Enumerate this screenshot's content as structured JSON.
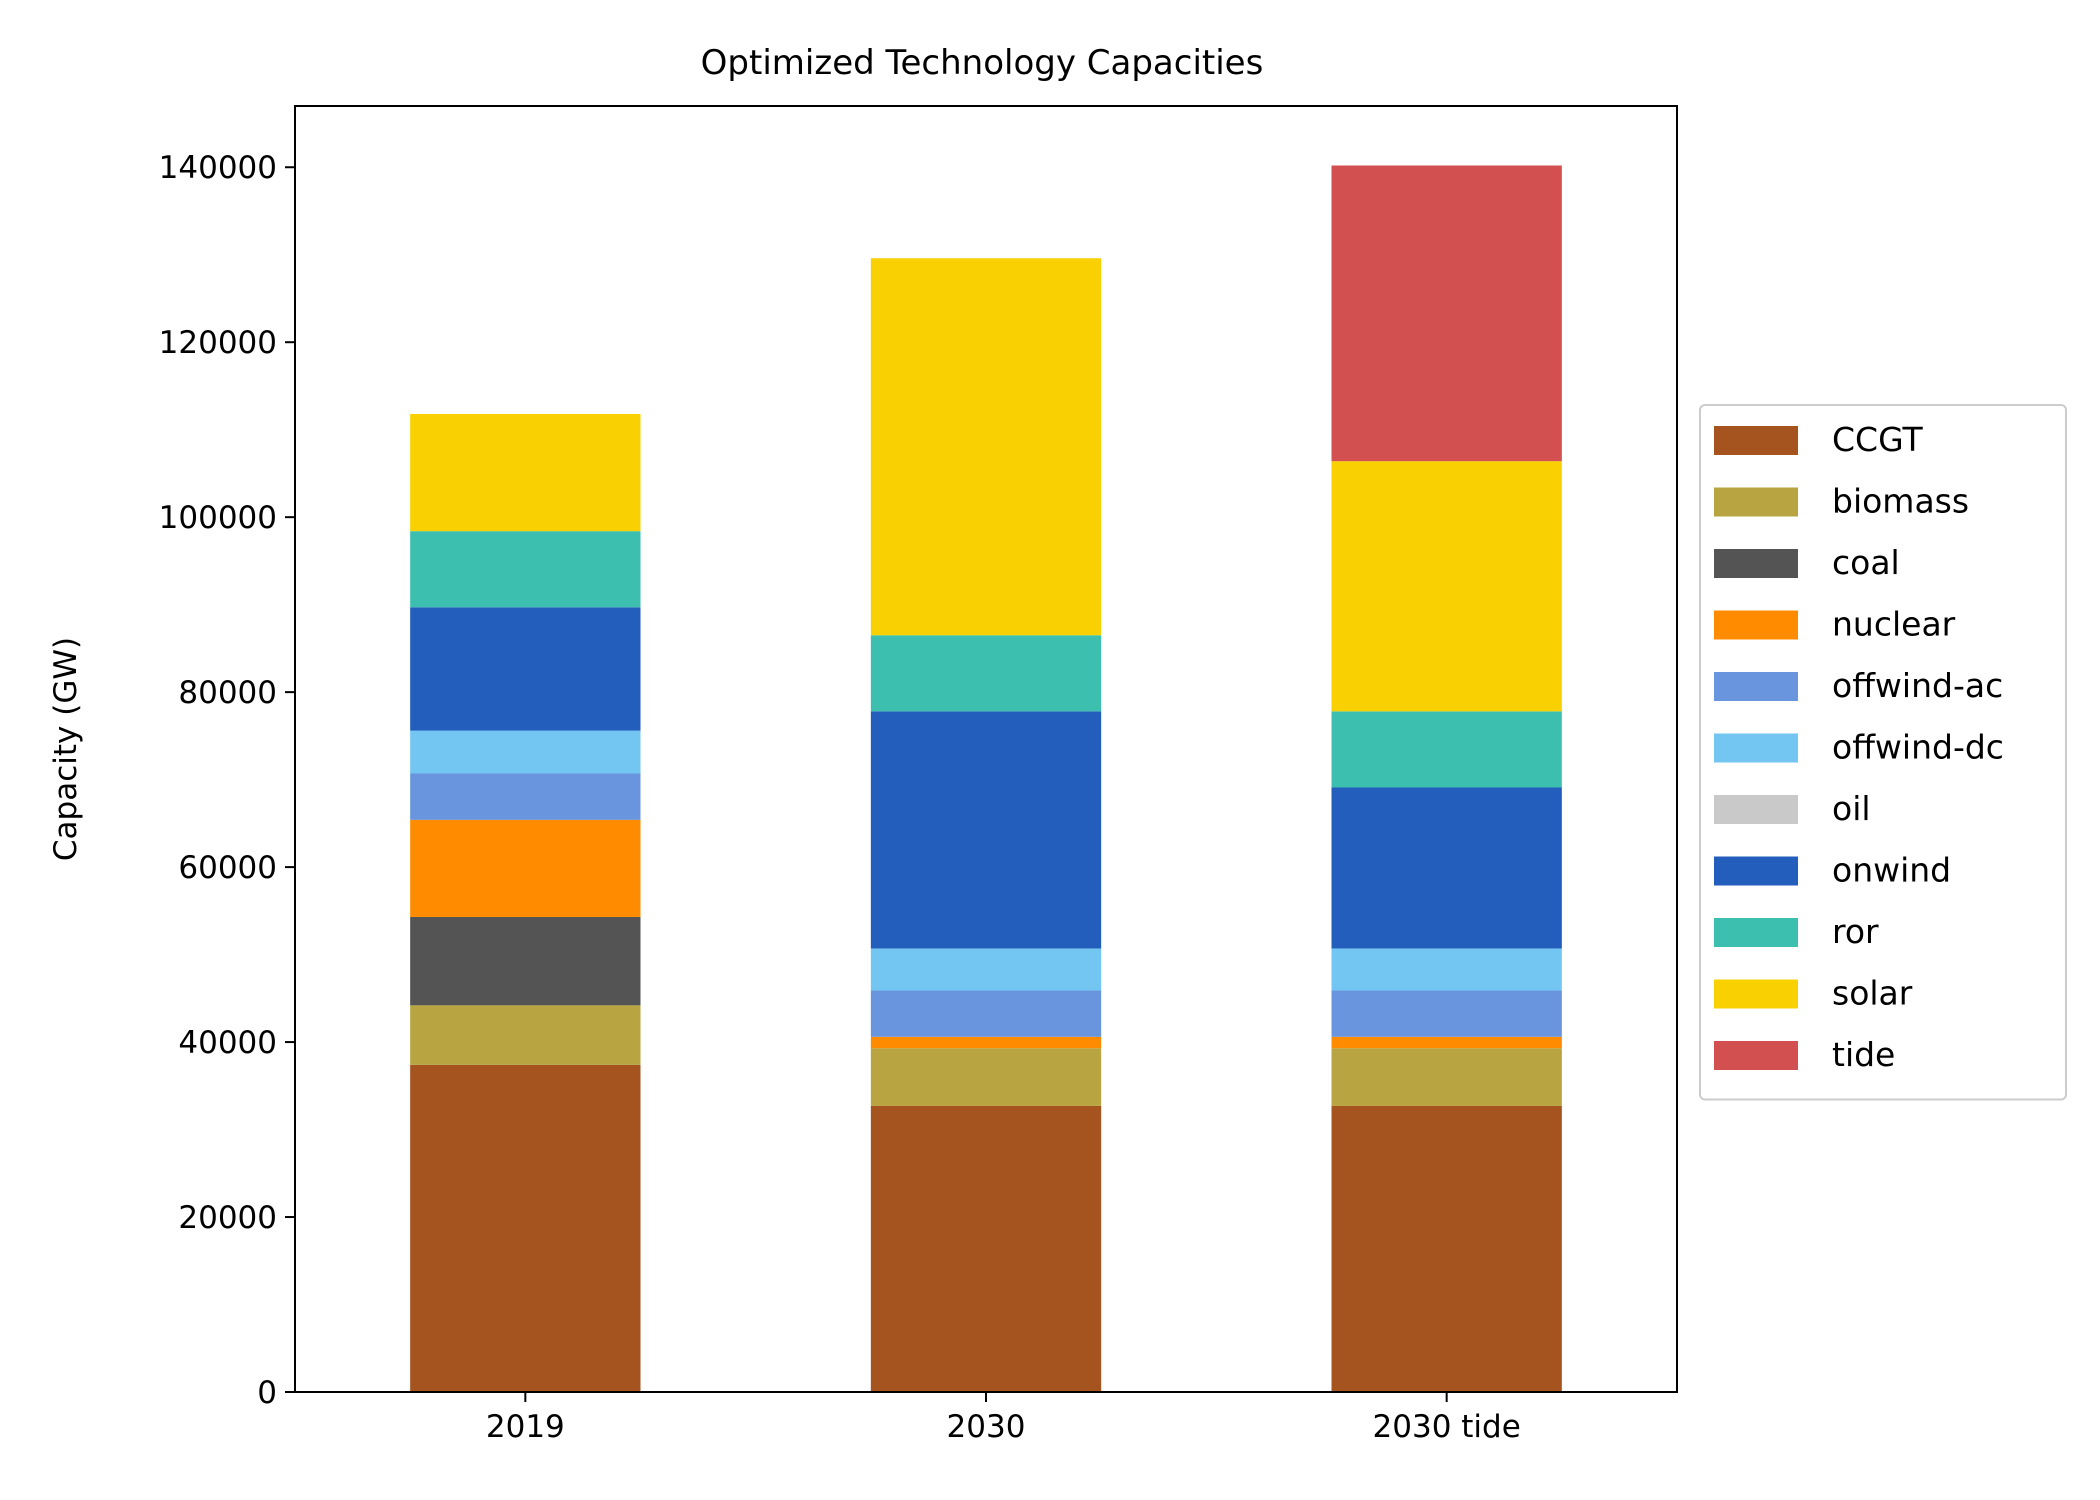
{
  "chart_data": {
    "type": "bar",
    "stacked": true,
    "title": "Optimized Technology Capacities",
    "xlabel": "",
    "ylabel": "Capacity (GW)",
    "categories": [
      "2019",
      "2030",
      "2030 tide"
    ],
    "ylim": [
      0,
      147000
    ],
    "yticks": [
      0,
      20000,
      40000,
      60000,
      80000,
      100000,
      120000,
      140000
    ],
    "ytick_labels": [
      "0",
      "20000",
      "40000",
      "60000",
      "80000",
      "100000",
      "120000",
      "140000"
    ],
    "grid": false,
    "legend_position": "right",
    "series": [
      {
        "name": "CCGT",
        "color": "#a6541f",
        "values": [
          37400,
          32700,
          32700
        ]
      },
      {
        "name": "biomass",
        "color": "#b8a441",
        "values": [
          6800,
          6600,
          6600
        ]
      },
      {
        "name": "coal",
        "color": "#545454",
        "values": [
          10100,
          0,
          0
        ]
      },
      {
        "name": "nuclear",
        "color": "#ff8c00",
        "values": [
          11100,
          1300,
          1300
        ]
      },
      {
        "name": "offwind-ac",
        "color": "#6895dd",
        "values": [
          5300,
          5300,
          5300
        ]
      },
      {
        "name": "offwind-dc",
        "color": "#74c6f2",
        "values": [
          4900,
          4800,
          4800
        ]
      },
      {
        "name": "oil",
        "color": "#c9c9c9",
        "values": [
          0,
          0,
          0
        ]
      },
      {
        "name": "onwind",
        "color": "#235ebc",
        "values": [
          14100,
          27100,
          18400
        ]
      },
      {
        "name": "ror",
        "color": "#3dbfb0",
        "values": [
          8700,
          8700,
          8700
        ]
      },
      {
        "name": "solar",
        "color": "#f9d002",
        "values": [
          13400,
          43100,
          28600
        ]
      },
      {
        "name": "tide",
        "color": "#d35050",
        "values": [
          0,
          0,
          33800
        ]
      }
    ]
  }
}
